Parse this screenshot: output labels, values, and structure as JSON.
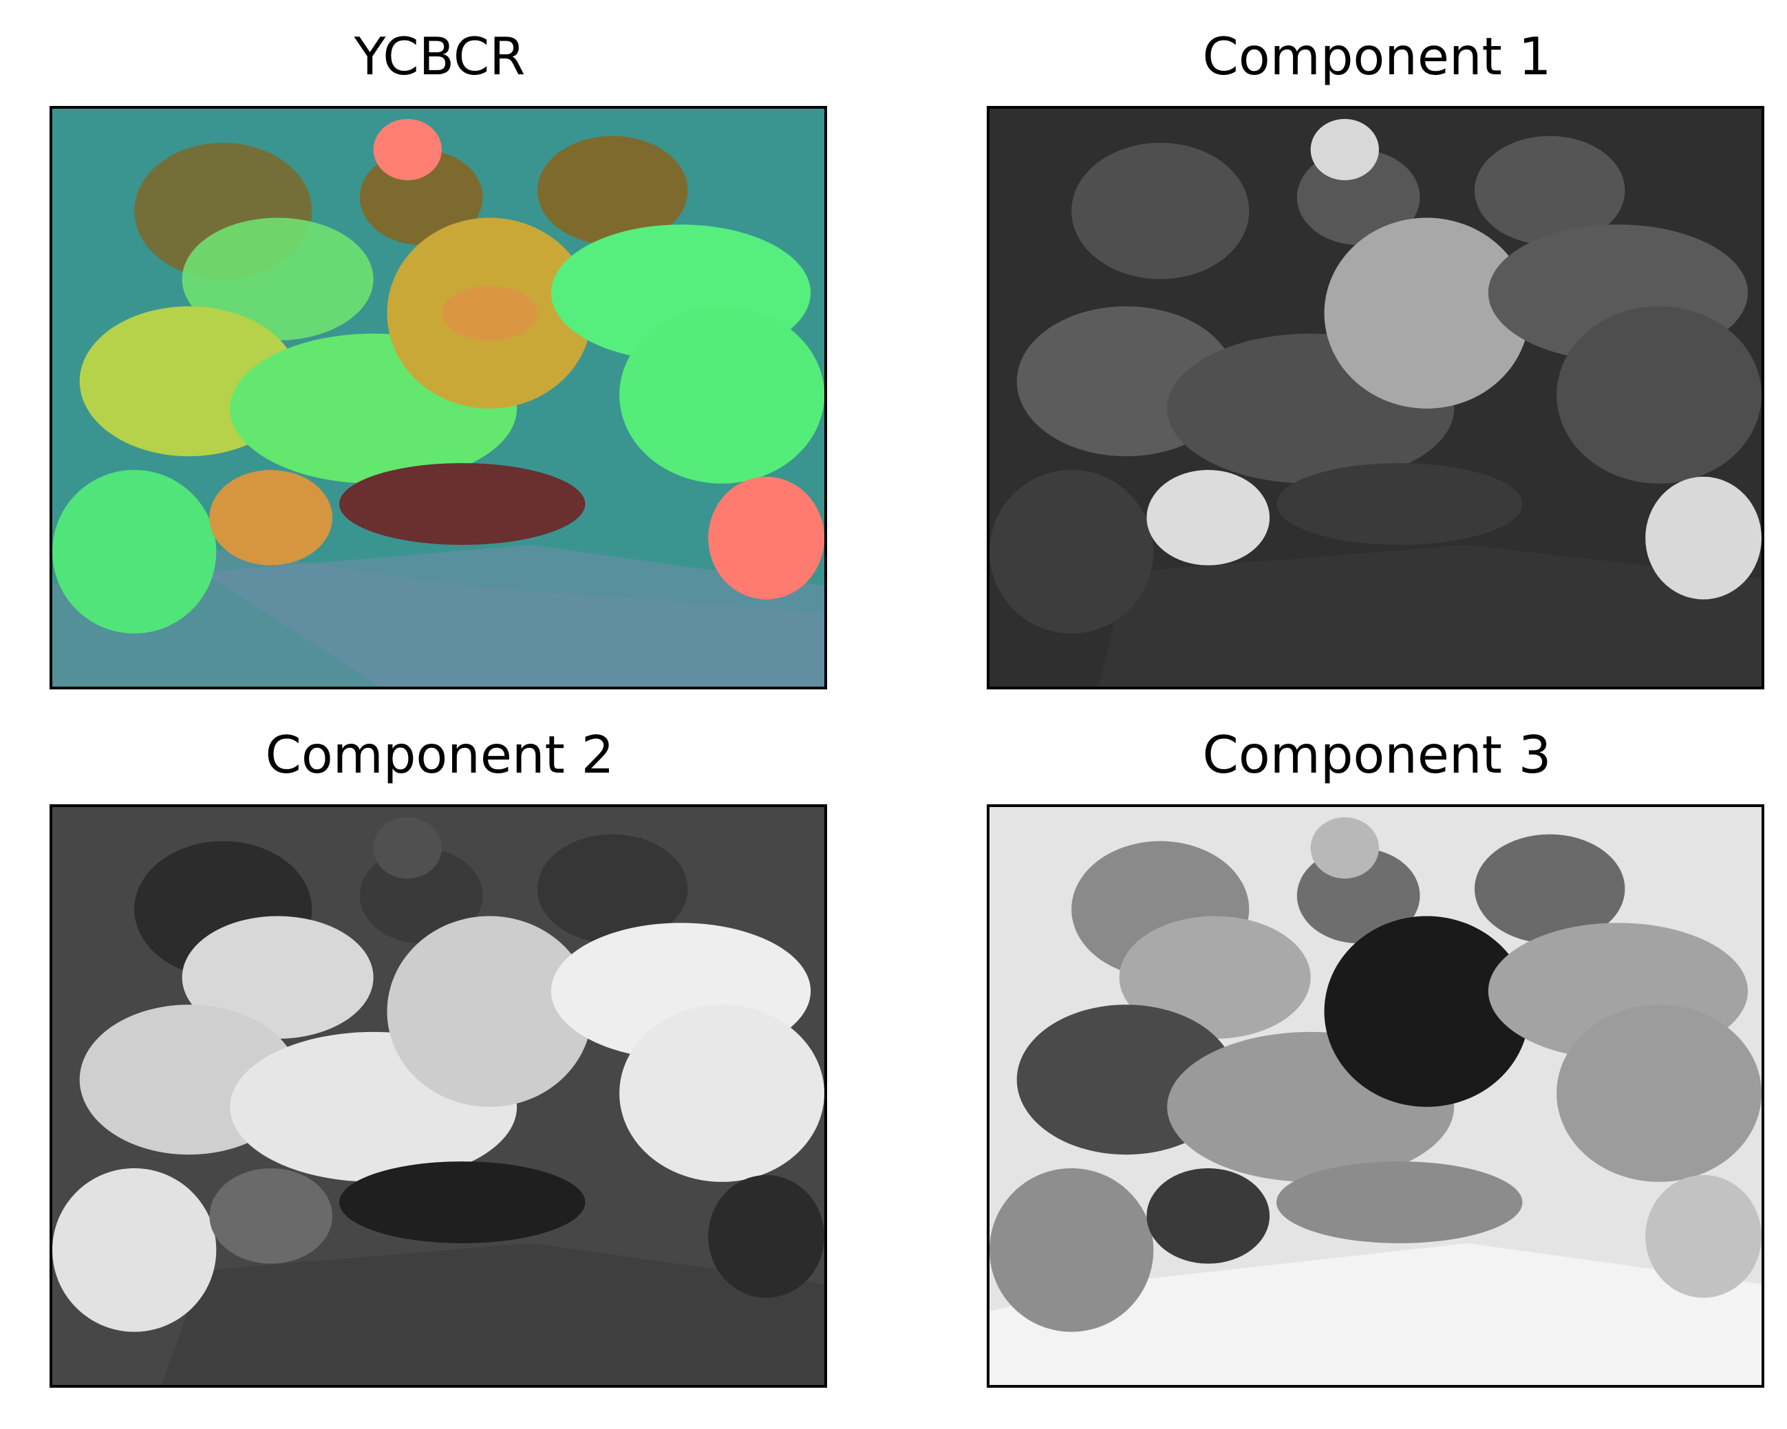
{
  "figure": {
    "panels": [
      {
        "title": "YCBCR",
        "description_icon": "pepper-still-life-ycbcr"
      },
      {
        "title": "Component 1",
        "description_icon": "pepper-still-life-luma"
      },
      {
        "title": "Component 2",
        "description_icon": "pepper-still-life-cb"
      },
      {
        "title": "Component 3",
        "description_icon": "pepper-still-life-cr"
      }
    ]
  },
  "colors": {
    "ycbcr_background": "#3a9590",
    "luma_background": "#2f2f2f",
    "cb_background": "#474747",
    "cr_background": "#e4e4e4"
  }
}
